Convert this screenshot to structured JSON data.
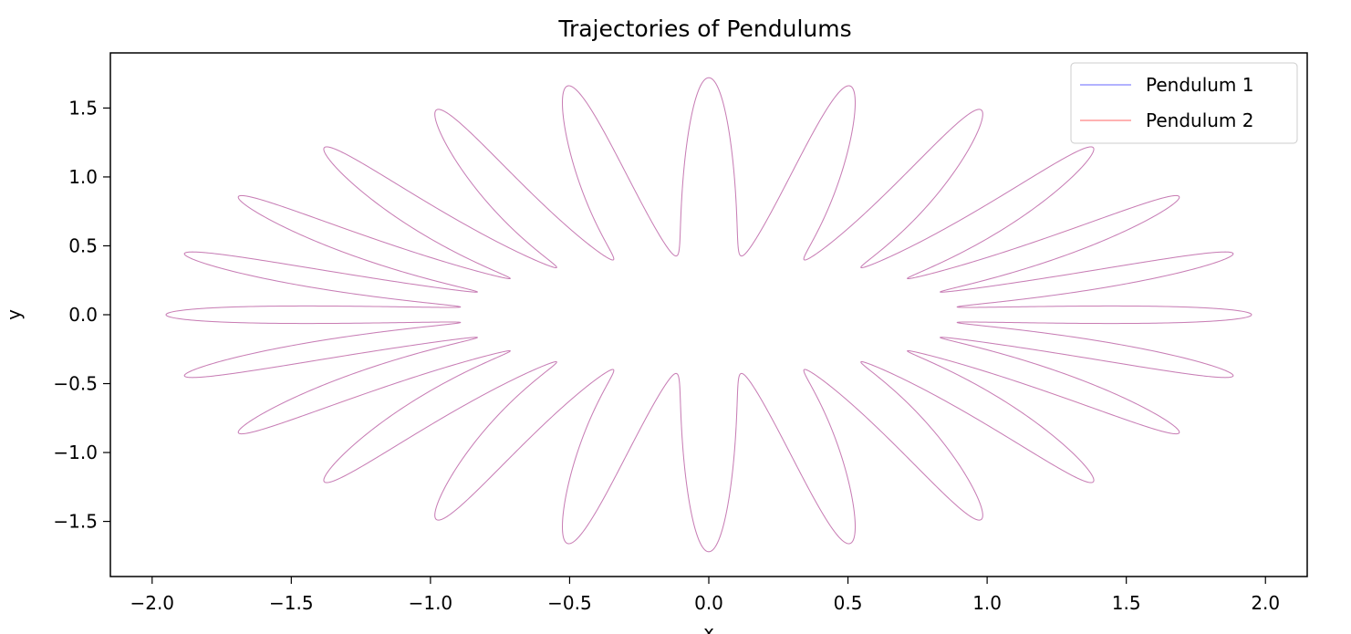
{
  "chart_data": {
    "type": "line",
    "title": "Trajectories of Pendulums",
    "xlabel": "x",
    "ylabel": "y",
    "xlim": [
      -2.15,
      2.15
    ],
    "ylim": [
      -1.9,
      1.9
    ],
    "x_ticks": [
      -2.0,
      -1.5,
      -1.0,
      -0.5,
      0.0,
      0.5,
      1.0,
      1.5,
      2.0
    ],
    "x_tick_labels": [
      "−2.0",
      "−1.5",
      "−1.0",
      "−0.5",
      "0.0",
      "0.5",
      "1.0",
      "1.5",
      "2.0"
    ],
    "y_ticks": [
      -1.5,
      -1.0,
      -0.5,
      0.0,
      0.5,
      1.0,
      1.5
    ],
    "y_tick_labels": [
      "−1.5",
      "−1.0",
      "−0.5",
      "0.0",
      "0.5",
      "1.0",
      "1.5"
    ],
    "grid": false,
    "legend_position": "top-right",
    "curve": {
      "description": "rose-like closed trajectory: rotating ellipse, semi-axis 0.9 along x and 0.43 along y at the inner ring, extending to about 1.95 in x and 1.72 in y",
      "inner_radius_x": 0.9,
      "inner_radius_y": 0.43,
      "outer_radius_x": 1.95,
      "outer_radius_y": 1.72,
      "petals": 24
    },
    "series": [
      {
        "name": "Pendulum 1",
        "color": "#0000ff",
        "opacity": 0.3,
        "phase_offset": 0.0
      },
      {
        "name": "Pendulum 2",
        "color": "#ff0000",
        "opacity": 0.3,
        "phase_offset": 0.012
      }
    ]
  }
}
